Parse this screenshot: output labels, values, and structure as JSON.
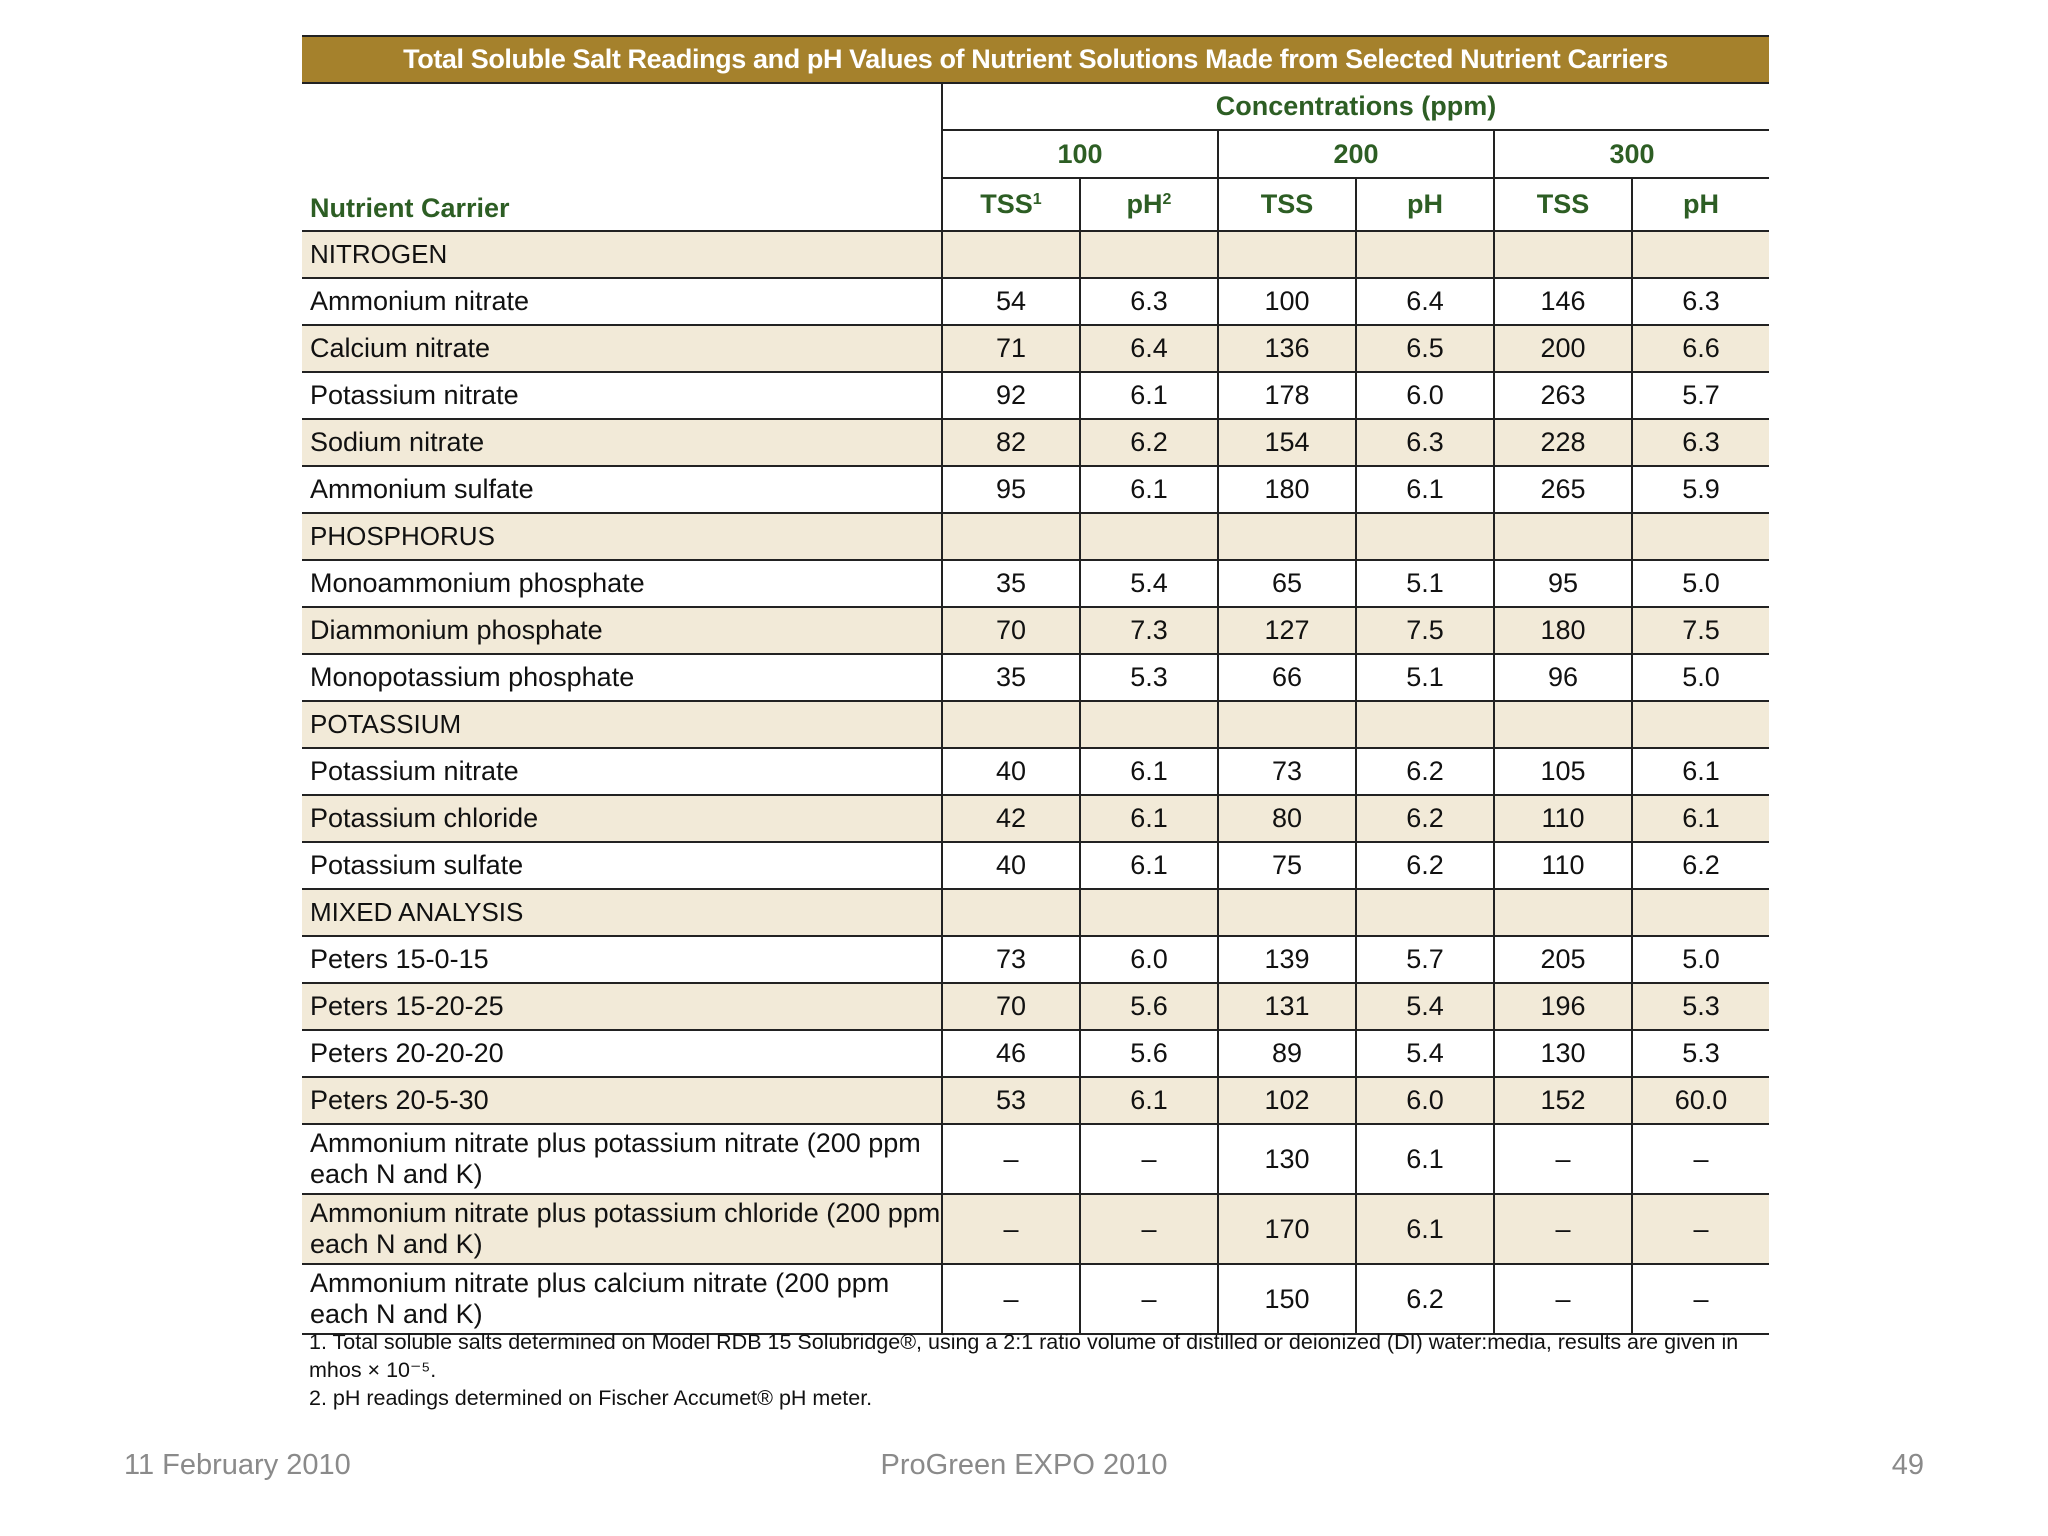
{
  "table": {
    "title": "Total Soluble Salt Readings and pH Values of Nutrient Solutions Made from Selected Nutrient Carriers",
    "concentrations_label": "Concentrations (ppm)",
    "levels": [
      "100",
      "200",
      "300"
    ],
    "carrier_header": "Nutrient Carrier",
    "col_headers": [
      {
        "label": "TSS",
        "sup": "1"
      },
      {
        "label": "pH",
        "sup": "2"
      },
      {
        "label": "TSS",
        "sup": ""
      },
      {
        "label": "pH",
        "sup": ""
      },
      {
        "label": "TSS",
        "sup": ""
      },
      {
        "label": "pH",
        "sup": ""
      }
    ],
    "rows": [
      {
        "type": "section",
        "name": "NITROGEN",
        "values": [
          "",
          "",
          "",
          "",
          "",
          ""
        ]
      },
      {
        "type": "data",
        "name": "Ammonium nitrate",
        "values": [
          "54",
          "6.3",
          "100",
          "6.4",
          "146",
          "6.3"
        ]
      },
      {
        "type": "data",
        "name": "Calcium nitrate",
        "values": [
          "71",
          "6.4",
          "136",
          "6.5",
          "200",
          "6.6"
        ]
      },
      {
        "type": "data",
        "name": "Potassium nitrate",
        "values": [
          "92",
          "6.1",
          "178",
          "6.0",
          "263",
          "5.7"
        ]
      },
      {
        "type": "data",
        "name": "Sodium nitrate",
        "values": [
          "82",
          "6.2",
          "154",
          "6.3",
          "228",
          "6.3"
        ]
      },
      {
        "type": "data",
        "name": "Ammonium sulfate",
        "values": [
          "95",
          "6.1",
          "180",
          "6.1",
          "265",
          "5.9"
        ]
      },
      {
        "type": "section",
        "name": "PHOSPHORUS",
        "values": [
          "",
          "",
          "",
          "",
          "",
          ""
        ]
      },
      {
        "type": "data",
        "name": "Monoammonium phosphate",
        "values": [
          "35",
          "5.4",
          "65",
          "5.1",
          "95",
          "5.0"
        ]
      },
      {
        "type": "data",
        "name": "Diammonium phosphate",
        "values": [
          "70",
          "7.3",
          "127",
          "7.5",
          "180",
          "7.5"
        ]
      },
      {
        "type": "data",
        "name": "Monopotassium phosphate",
        "values": [
          "35",
          "5.3",
          "66",
          "5.1",
          "96",
          "5.0"
        ]
      },
      {
        "type": "section",
        "name": "POTASSIUM",
        "values": [
          "",
          "",
          "",
          "",
          "",
          ""
        ]
      },
      {
        "type": "data",
        "name": "Potassium nitrate",
        "values": [
          "40",
          "6.1",
          "73",
          "6.2",
          "105",
          "6.1"
        ]
      },
      {
        "type": "data",
        "name": "Potassium chloride",
        "values": [
          "42",
          "6.1",
          "80",
          "6.2",
          "110",
          "6.1"
        ]
      },
      {
        "type": "data",
        "name": "Potassium sulfate",
        "values": [
          "40",
          "6.1",
          "75",
          "6.2",
          "110",
          "6.2"
        ]
      },
      {
        "type": "section",
        "name": "MIXED ANALYSIS",
        "values": [
          "",
          "",
          "",
          "",
          "",
          ""
        ]
      },
      {
        "type": "data",
        "name": "Peters 15-0-15",
        "values": [
          "73",
          "6.0",
          "139",
          "5.7",
          "205",
          "5.0"
        ]
      },
      {
        "type": "data",
        "name": "Peters 15-20-25",
        "values": [
          "70",
          "5.6",
          "131",
          "5.4",
          "196",
          "5.3"
        ]
      },
      {
        "type": "data",
        "name": "Peters 20-20-20",
        "values": [
          "46",
          "5.6",
          "89",
          "5.4",
          "130",
          "5.3"
        ]
      },
      {
        "type": "data",
        "name": "Peters 20-5-30",
        "values": [
          "53",
          "6.1",
          "102",
          "6.0",
          "152",
          "60.0"
        ]
      },
      {
        "type": "data",
        "name": "Ammonium nitrate plus potassium nitrate (200 ppm each N and K)",
        "values": [
          "–",
          "–",
          "130",
          "6.1",
          "–",
          "–"
        ]
      },
      {
        "type": "data",
        "name": "Ammonium nitrate plus potassium chloride (200 ppm each N and K)",
        "values": [
          "–",
          "–",
          "170",
          "6.1",
          "–",
          "–"
        ]
      },
      {
        "type": "data",
        "name": "Ammonium nitrate plus calcium nitrate (200 ppm each N and K)",
        "values": [
          "–",
          "–",
          "150",
          "6.2",
          "–",
          "–"
        ]
      }
    ]
  },
  "footnotes": [
    "1. Total soluble salts determined on Model RDB 15 Solubridge®, using a 2:1 ratio volume of distilled or deionized (DI) water:media, results are given in mhos × 10⁻⁵.",
    "2. pH readings determined on Fischer Accumet® pH meter."
  ],
  "footer": {
    "date": "11 February 2010",
    "event": "ProGreen EXPO 2010",
    "page": "49"
  },
  "colors": {
    "title_bg": "#a5812c",
    "header_text": "#2d5e24",
    "shaded_row": "#f2ead8",
    "footer_text": "#8a8a8a"
  }
}
